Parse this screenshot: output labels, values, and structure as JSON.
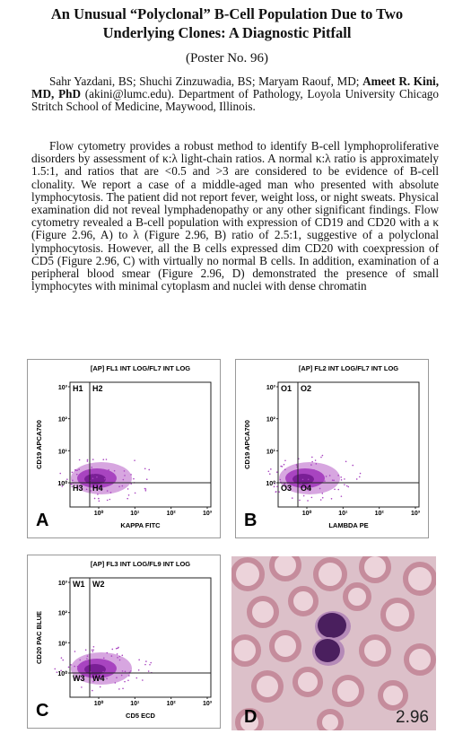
{
  "title": [
    "An Unusual “Polyclonal” B-Cell Population Due to Two",
    "Underlying Clones: A Diagnostic Pitfall"
  ],
  "poster": "(Poster No. 96)",
  "authors": {
    "before": "Sahr Yazdani, BS; Shuchi Zinzuwadia, BS; Maryam Raouf, MD;",
    "bold": "Ameet R. Kini, MD, PhD",
    "after": "(akini@lumc.edu). Department of Pathology, Loyola University Chicago Stritch School of Medicine, Maywood, Illinois."
  },
  "body": "Flow cytometry provides a robust method to identify B-cell lymphoproliferative disorders by assessment of κ:λ light-chain ratios. A normal κ:λ ratio is approximately 1.5:1, and ratios that are <0.5 and >3 are considered to be evidence of B-cell clonality. We report a case of a middle-aged man who presented with absolute lymphocytosis. The patient did not report fever, weight loss, or night sweats. Physical examination did not reveal lymphadenopathy or any other significant findings. Flow cytometry revealed a B-cell population with expression of CD19 and CD20 with a κ (Figure 2.96, A) to λ (Figure 2.96, B) ratio of 2.5:1, suggestive of a polyclonal lymphocytosis. However, all the B cells expressed dim CD20 with coexpression of CD5 (Figure 2.96, C) with virtually no normal B cells. In addition, examination of a peripheral blood smear (Figure 2.96, D) demonstrated the presence of small lymphocytes with minimal cytoplasm and nuclei with dense chromatin",
  "panels": [
    {
      "letter": "A",
      "header": "[AP] FL1 INT LOG/FL7 INT LOG",
      "ylabel": "CD19 APCA700",
      "xlabel": "KAPPA FITC",
      "quadrants": [
        "H1",
        "H2",
        "H3",
        "H4"
      ],
      "yticks": [
        "10³",
        "10²",
        "10¹",
        "10⁰"
      ],
      "xticks": [
        "10⁰",
        "10¹",
        "10²",
        "10³"
      ]
    },
    {
      "letter": "B",
      "header": "[AP] FL2 INT LOG/FL7 INT LOG",
      "ylabel": "CD19 APCA700",
      "xlabel": "LAMBDA PE",
      "quadrants": [
        "O1",
        "O2",
        "O3",
        "O4"
      ],
      "yticks": [
        "10³",
        "10²",
        "10¹",
        "10⁰"
      ],
      "xticks": [
        "10⁰",
        "10¹",
        "10²",
        "10³"
      ]
    },
    {
      "letter": "C",
      "header": "[AP] FL3 INT LOG/FL9 INT LOG",
      "ylabel": "CD20 PAC BLUE",
      "xlabel": "CD5 ECD",
      "quadrants": [
        "W1",
        "W2",
        "W3",
        "W4"
      ],
      "yticks": [
        "10³",
        "10²",
        "10¹",
        "10⁰"
      ],
      "xticks": [
        "10⁰",
        "10¹",
        "10²",
        "10³"
      ]
    }
  ],
  "image": {
    "letter": "D",
    "figure": "2.96"
  }
}
